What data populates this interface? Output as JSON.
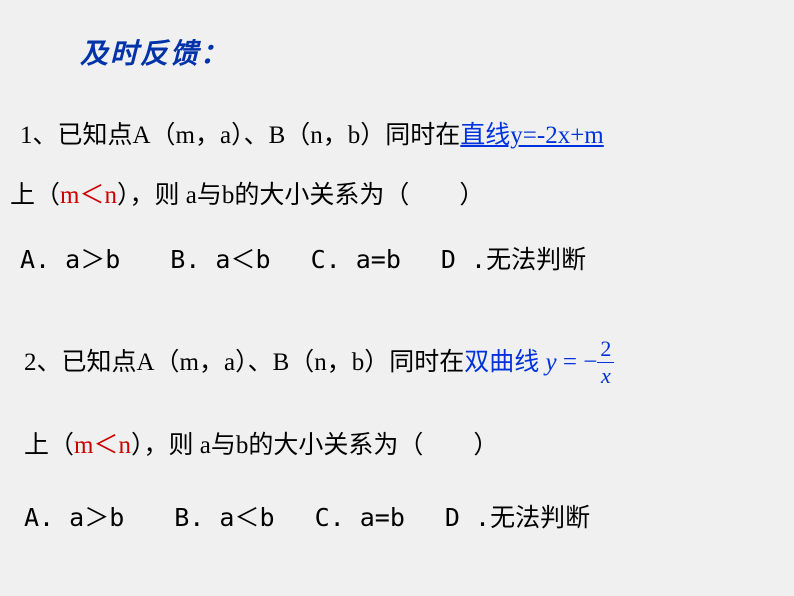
{
  "colors": {
    "background": "#f0f0f0",
    "text": "#000000",
    "title": "#0033aa",
    "blue": "#0033dd",
    "red": "#cc0000"
  },
  "fonts": {
    "body_family": "SimSun",
    "body_size_pt": 19,
    "title_size_pt": 21,
    "title_weight": "bold",
    "title_style": "italic"
  },
  "title": "及时反馈：",
  "q1": {
    "prefix": "1、已知点A（m，a）、B（n，b）同时在",
    "blue_underline": "直线y=-2x+m",
    "line2_pre": "上（",
    "condition_red": "m＜n",
    "line2_post": "），则 a与b的大小关系为（　　）",
    "options": "A. a＞b　　B. a＜b　 C. a=b　 D .无法判断"
  },
  "q2": {
    "prefix": "2、已知点A（m，a）、B（n，b）同时在",
    "blue_label": "双曲线",
    "formula": {
      "lhs": "y",
      "eq": " = −",
      "num": "2",
      "den": "x"
    },
    "line2_pre": "上（",
    "condition_red": "m＜n",
    "line2_post": "），则 a与b的大小关系为（　　）",
    "options": "A. a＞b　　B. a＜b　 C. a=b　 D .无法判断"
  }
}
